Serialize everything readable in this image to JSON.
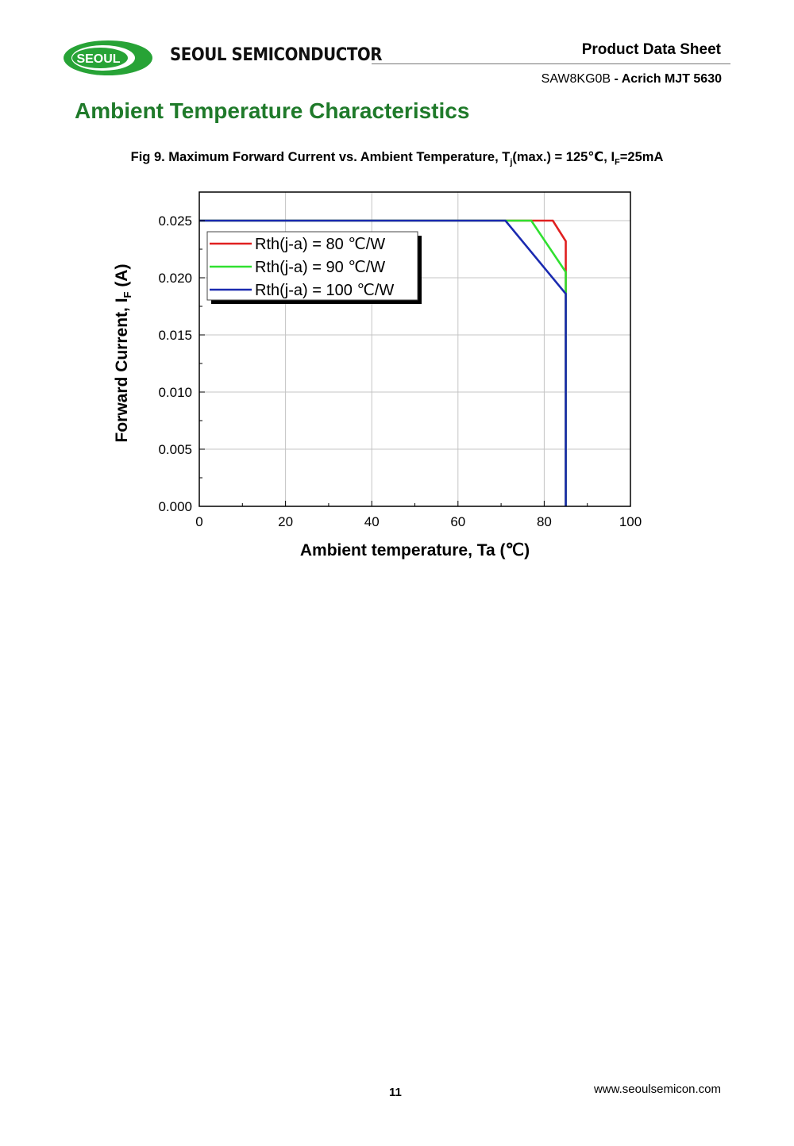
{
  "header": {
    "logo_text": "SEOUL",
    "brand": "SEOUL SEMICONDUCTOR",
    "doc_type": "Product Data Sheet",
    "product_code": "SAW8KG0B",
    "product_name": " - Acrich MJT 5630"
  },
  "section_title": "Ambient Temperature Characteristics",
  "figure": {
    "caption_prefix": "Fig 9. Maximum Forward Current vs. Ambient Temperature,  T",
    "caption_sub1": "j",
    "caption_mid": "(max.) = 125℃, I",
    "caption_sub2": "F",
    "caption_suffix": "=25mA"
  },
  "chart_data": {
    "type": "line",
    "xlabel": "Ambient temperature, Ta (℃)",
    "ylabel_main": "Forward Current, I",
    "ylabel_sub": "F",
    "ylabel_unit": " (A)",
    "xlim": [
      0,
      100
    ],
    "ylim": [
      0,
      0.025
    ],
    "xticks": [
      "0",
      "20",
      "40",
      "60",
      "80",
      "100"
    ],
    "yticks": [
      "0.000",
      "0.005",
      "0.010",
      "0.015",
      "0.020",
      "0.025"
    ],
    "grid": true,
    "legend": "top-left",
    "series": [
      {
        "name": "Rth(j-a) = 80 ℃/W",
        "color": "#e02020",
        "x": [
          0,
          82,
          85,
          85
        ],
        "y": [
          0.025,
          0.025,
          0.0232,
          0
        ]
      },
      {
        "name": "Rth(j-a) = 90 ℃/W",
        "color": "#30e030",
        "x": [
          0,
          77,
          85,
          85
        ],
        "y": [
          0.025,
          0.025,
          0.0205,
          0
        ]
      },
      {
        "name": "Rth(j-a) = 100 ℃/W",
        "color": "#1a2ab0",
        "x": [
          0,
          71,
          85,
          85
        ],
        "y": [
          0.025,
          0.025,
          0.0186,
          0
        ]
      }
    ]
  },
  "footer": {
    "page": "11",
    "url": "www.seoulsemicon.com"
  }
}
